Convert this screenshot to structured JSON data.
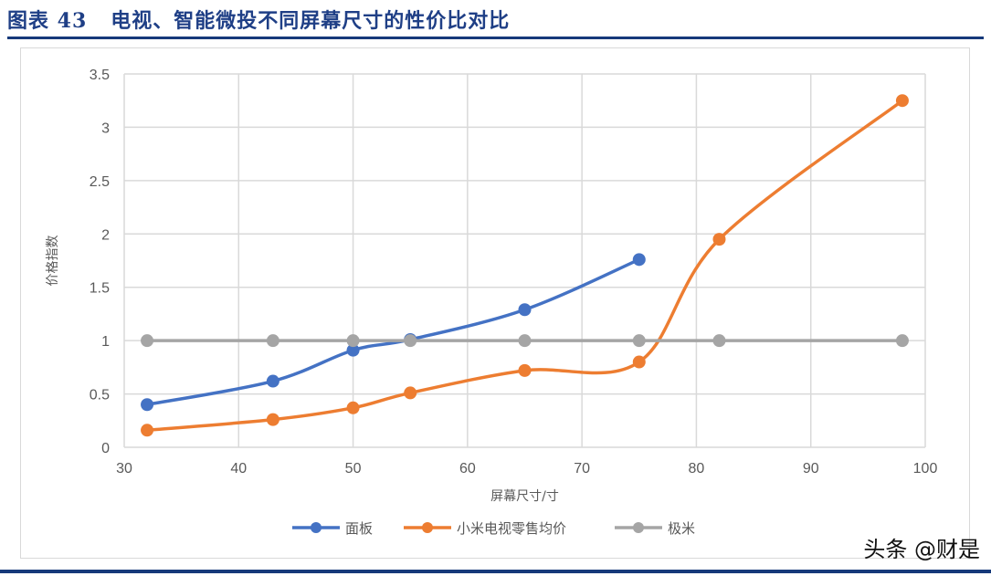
{
  "header": {
    "figure_label": "图表 43",
    "title": "电视、智能微投不同屏幕尺寸的性价比对比"
  },
  "watermark": "头条 @财是",
  "chart_data": {
    "type": "line",
    "title": "电视、智能微投不同屏幕尺寸的性价比对比",
    "xlabel": "屏幕尺寸/寸",
    "ylabel": "价格指数",
    "xlim": [
      30,
      100
    ],
    "ylim": [
      0,
      3.5
    ],
    "x_ticks": [
      "30",
      "40",
      "50",
      "60",
      "70",
      "80",
      "90",
      "100"
    ],
    "y_ticks": [
      "0",
      "0.5",
      "1",
      "1.5",
      "2",
      "2.5",
      "3",
      "3.5"
    ],
    "grid": true,
    "smooth": true,
    "legend_position": "bottom",
    "series": [
      {
        "name": "面板",
        "color": "#4472c4",
        "x": [
          32,
          43,
          50,
          55,
          65,
          75
        ],
        "values": [
          0.4,
          0.62,
          0.91,
          1.01,
          1.29,
          1.76
        ]
      },
      {
        "name": "小米电视零售均价",
        "color": "#ed7d31",
        "x": [
          32,
          43,
          50,
          55,
          65,
          75,
          82,
          98
        ],
        "values": [
          0.16,
          0.26,
          0.37,
          0.51,
          0.72,
          0.8,
          1.95,
          3.25
        ]
      },
      {
        "name": "极米",
        "color": "#a5a5a5",
        "x": [
          32,
          43,
          50,
          55,
          65,
          75,
          82,
          98
        ],
        "values": [
          1,
          1,
          1,
          1,
          1,
          1,
          1,
          1
        ]
      }
    ]
  }
}
